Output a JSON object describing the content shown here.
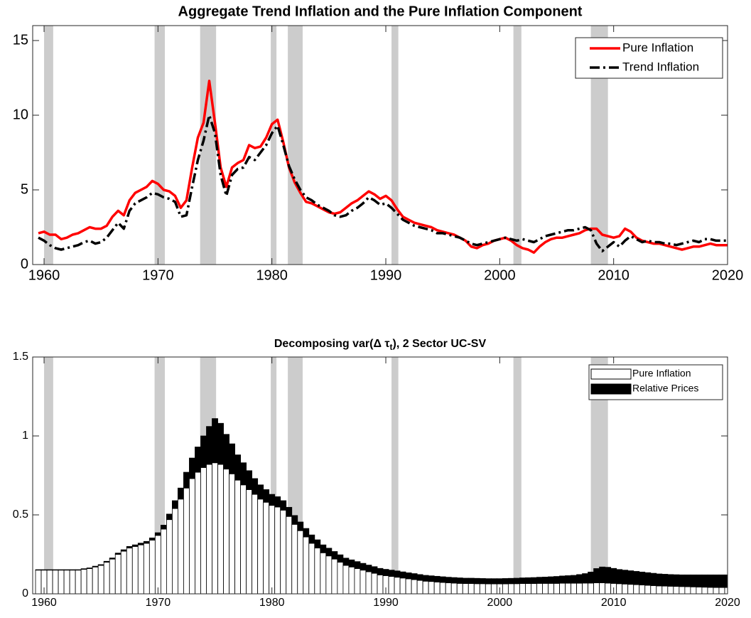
{
  "chart_data": [
    {
      "type": "line",
      "title": "Aggregate Trend Inflation and the Pure Inflation Component",
      "x": [
        1959.5,
        1960,
        1960.5,
        1961,
        1961.5,
        1962,
        1962.5,
        1963,
        1963.5,
        1964,
        1964.5,
        1965,
        1965.5,
        1966,
        1966.5,
        1967,
        1967.5,
        1968,
        1968.5,
        1969,
        1969.5,
        1970,
        1970.5,
        1971,
        1971.5,
        1972,
        1972.5,
        1973,
        1973.5,
        1974,
        1974.5,
        1975,
        1975.5,
        1976,
        1976.5,
        1977,
        1977.5,
        1978,
        1978.5,
        1979,
        1979.5,
        1980,
        1980.5,
        1981,
        1981.5,
        1982,
        1982.5,
        1983,
        1983.5,
        1984,
        1984.5,
        1985,
        1985.5,
        1986,
        1986.5,
        1987,
        1987.5,
        1988,
        1988.5,
        1989,
        1989.5,
        1990,
        1990.5,
        1991,
        1991.5,
        1992,
        1992.5,
        1993,
        1993.5,
        1994,
        1994.5,
        1995,
        1995.5,
        1996,
        1996.5,
        1997,
        1997.5,
        1998,
        1998.5,
        1999,
        1999.5,
        2000,
        2000.5,
        2001,
        2001.5,
        2002,
        2002.5,
        2003,
        2003.5,
        2004,
        2004.5,
        2005,
        2005.5,
        2006,
        2006.5,
        2007,
        2007.5,
        2008,
        2008.5,
        2009,
        2009.5,
        2010,
        2010.5,
        2011,
        2011.5,
        2012,
        2012.5,
        2013,
        2013.5,
        2014,
        2014.5,
        2015,
        2015.5,
        2016,
        2016.5,
        2017,
        2017.5,
        2018,
        2018.5,
        2019,
        2019.5,
        2020
      ],
      "series": [
        {
          "name": "Pure Inflation",
          "color": "#ff0000",
          "line_style": "solid",
          "values": [
            2.1,
            2.2,
            2.0,
            2.0,
            1.7,
            1.8,
            2.0,
            2.1,
            2.3,
            2.5,
            2.4,
            2.4,
            2.6,
            3.2,
            3.6,
            3.3,
            4.3,
            4.8,
            5.0,
            5.2,
            5.6,
            5.4,
            5.0,
            4.9,
            4.6,
            3.8,
            4.3,
            6.5,
            8.5,
            9.5,
            12.3,
            9.5,
            6.5,
            5.2,
            6.5,
            6.8,
            7.0,
            8.0,
            7.8,
            7.9,
            8.5,
            9.4,
            9.7,
            8.2,
            6.5,
            5.5,
            4.8,
            4.2,
            4.1,
            3.9,
            3.7,
            3.5,
            3.4,
            3.5,
            3.8,
            4.1,
            4.3,
            4.6,
            4.9,
            4.7,
            4.4,
            4.6,
            4.3,
            3.7,
            3.2,
            3.0,
            2.8,
            2.7,
            2.6,
            2.5,
            2.3,
            2.2,
            2.1,
            2.0,
            1.8,
            1.6,
            1.2,
            1.1,
            1.3,
            1.4,
            1.6,
            1.7,
            1.8,
            1.6,
            1.3,
            1.1,
            1.0,
            0.8,
            1.2,
            1.5,
            1.7,
            1.8,
            1.8,
            1.9,
            2.0,
            2.1,
            2.3,
            2.4,
            2.4,
            2.0,
            1.9,
            1.8,
            1.9,
            2.4,
            2.2,
            1.8,
            1.6,
            1.5,
            1.4,
            1.4,
            1.3,
            1.2,
            1.1,
            1.0,
            1.1,
            1.2,
            1.2,
            1.3,
            1.4,
            1.3,
            1.3,
            1.3
          ]
        },
        {
          "name": "Trend Inflation",
          "color": "#000000",
          "line_style": "dashdot",
          "values": [
            1.8,
            1.6,
            1.3,
            1.1,
            1.0,
            1.1,
            1.2,
            1.3,
            1.5,
            1.6,
            1.4,
            1.5,
            1.8,
            2.3,
            2.8,
            2.4,
            3.6,
            4.1,
            4.3,
            4.5,
            4.8,
            4.7,
            4.5,
            4.4,
            4.2,
            3.2,
            3.3,
            5.2,
            7.0,
            8.3,
            10.0,
            8.8,
            6.0,
            4.6,
            6.0,
            6.4,
            6.5,
            7.2,
            7.0,
            7.5,
            8.0,
            8.8,
            9.3,
            8.0,
            6.6,
            5.7,
            5.0,
            4.5,
            4.3,
            4.0,
            3.8,
            3.6,
            3.3,
            3.2,
            3.3,
            3.6,
            3.8,
            4.1,
            4.5,
            4.3,
            4.0,
            4.1,
            3.8,
            3.4,
            3.0,
            2.8,
            2.6,
            2.5,
            2.4,
            2.3,
            2.1,
            2.1,
            2.0,
            1.9,
            1.8,
            1.6,
            1.4,
            1.3,
            1.4,
            1.5,
            1.6,
            1.7,
            1.8,
            1.7,
            1.6,
            1.7,
            1.6,
            1.5,
            1.7,
            1.9,
            2.0,
            2.1,
            2.2,
            2.3,
            2.3,
            2.4,
            2.5,
            2.3,
            1.4,
            0.9,
            1.2,
            1.5,
            1.2,
            1.6,
            1.9,
            1.7,
            1.5,
            1.6,
            1.5,
            1.5,
            1.4,
            1.4,
            1.3,
            1.4,
            1.5,
            1.6,
            1.5,
            1.7,
            1.7,
            1.6,
            1.6,
            1.6
          ]
        }
      ],
      "xlim": [
        1959,
        2020
      ],
      "xticks": [
        1960,
        1970,
        1980,
        1990,
        2000,
        2010,
        2020
      ],
      "ylim": [
        0,
        16
      ],
      "yticks": [
        0,
        5,
        10,
        15
      ],
      "legend": "upper right",
      "shade_color": "#cccccc",
      "shaded_periods": [
        [
          1960.0,
          1960.8
        ],
        [
          1969.7,
          1970.6
        ],
        [
          1973.7,
          1975.1
        ],
        [
          1979.9,
          1980.4
        ],
        [
          1981.4,
          1982.7
        ],
        [
          1990.5,
          1991.1
        ],
        [
          2001.2,
          2001.9
        ],
        [
          2008.0,
          2009.5
        ]
      ]
    },
    {
      "type": "stacked_bar",
      "title_prefix": "Decomposing var(Δ τ",
      "title_sub": "t",
      "title_suffix": "), 2 Sector UC-SV",
      "x": [
        1959.5,
        1960,
        1960.5,
        1961,
        1961.5,
        1962,
        1962.5,
        1963,
        1963.5,
        1964,
        1964.5,
        1965,
        1965.5,
        1966,
        1966.5,
        1967,
        1967.5,
        1968,
        1968.5,
        1969,
        1969.5,
        1970,
        1970.5,
        1971,
        1971.5,
        1972,
        1972.5,
        1973,
        1973.5,
        1974,
        1974.5,
        1975,
        1975.5,
        1976,
        1976.5,
        1977,
        1977.5,
        1978,
        1978.5,
        1979,
        1979.5,
        1980,
        1980.5,
        1981,
        1981.5,
        1982,
        1982.5,
        1983,
        1983.5,
        1984,
        1984.5,
        1985,
        1985.5,
        1986,
        1986.5,
        1987,
        1987.5,
        1988,
        1988.5,
        1989,
        1989.5,
        1990,
        1990.5,
        1991,
        1991.5,
        1992,
        1992.5,
        1993,
        1993.5,
        1994,
        1994.5,
        1995,
        1995.5,
        1996,
        1996.5,
        1997,
        1997.5,
        1998,
        1998.5,
        1999,
        1999.5,
        2000,
        2000.5,
        2001,
        2001.5,
        2002,
        2002.5,
        2003,
        2003.5,
        2004,
        2004.5,
        2005,
        2005.5,
        2006,
        2006.5,
        2007,
        2007.5,
        2008,
        2008.5,
        2009,
        2009.5,
        2010,
        2010.5,
        2011,
        2011.5,
        2012,
        2012.5,
        2013,
        2013.5,
        2014,
        2014.5,
        2015,
        2015.5,
        2016,
        2016.5,
        2017,
        2017.5,
        2018,
        2018.5,
        2019,
        2019.5,
        2020
      ],
      "series": [
        {
          "name": "Pure Inflation",
          "color": "#ffffff",
          "values": [
            0.15,
            0.15,
            0.15,
            0.15,
            0.15,
            0.15,
            0.15,
            0.15,
            0.155,
            0.16,
            0.17,
            0.18,
            0.2,
            0.22,
            0.25,
            0.27,
            0.29,
            0.3,
            0.31,
            0.32,
            0.34,
            0.37,
            0.41,
            0.47,
            0.54,
            0.6,
            0.67,
            0.73,
            0.77,
            0.8,
            0.82,
            0.83,
            0.82,
            0.79,
            0.76,
            0.72,
            0.69,
            0.66,
            0.63,
            0.6,
            0.58,
            0.56,
            0.55,
            0.53,
            0.49,
            0.44,
            0.4,
            0.36,
            0.32,
            0.29,
            0.26,
            0.24,
            0.22,
            0.2,
            0.18,
            0.17,
            0.16,
            0.15,
            0.14,
            0.13,
            0.12,
            0.115,
            0.11,
            0.105,
            0.1,
            0.095,
            0.09,
            0.085,
            0.08,
            0.078,
            0.075,
            0.072,
            0.07,
            0.068,
            0.066,
            0.065,
            0.065,
            0.064,
            0.064,
            0.063,
            0.063,
            0.063,
            0.063,
            0.064,
            0.064,
            0.065,
            0.065,
            0.065,
            0.066,
            0.066,
            0.066,
            0.066,
            0.067,
            0.067,
            0.067,
            0.067,
            0.068,
            0.068,
            0.07,
            0.07,
            0.068,
            0.066,
            0.064,
            0.062,
            0.06,
            0.058,
            0.056,
            0.054,
            0.052,
            0.05,
            0.049,
            0.048,
            0.047,
            0.046,
            0.045,
            0.044,
            0.043,
            0.042,
            0.041,
            0.04,
            0.04,
            0.04
          ]
        },
        {
          "name": "Relative Prices",
          "color": "#000000",
          "values": [
            0.003,
            0.003,
            0.003,
            0.003,
            0.003,
            0.003,
            0.003,
            0.003,
            0.004,
            0.004,
            0.005,
            0.005,
            0.006,
            0.007,
            0.008,
            0.009,
            0.01,
            0.01,
            0.011,
            0.012,
            0.014,
            0.017,
            0.025,
            0.035,
            0.05,
            0.07,
            0.1,
            0.13,
            0.16,
            0.2,
            0.24,
            0.28,
            0.26,
            0.22,
            0.19,
            0.16,
            0.14,
            0.12,
            0.1,
            0.09,
            0.08,
            0.07,
            0.065,
            0.06,
            0.058,
            0.056,
            0.055,
            0.054,
            0.053,
            0.052,
            0.05,
            0.049,
            0.048,
            0.047,
            0.046,
            0.045,
            0.044,
            0.043,
            0.042,
            0.042,
            0.041,
            0.04,
            0.04,
            0.04,
            0.039,
            0.038,
            0.038,
            0.037,
            0.037,
            0.036,
            0.036,
            0.036,
            0.035,
            0.035,
            0.035,
            0.034,
            0.034,
            0.034,
            0.033,
            0.033,
            0.033,
            0.033,
            0.034,
            0.034,
            0.035,
            0.036,
            0.037,
            0.038,
            0.039,
            0.04,
            0.042,
            0.044,
            0.046,
            0.048,
            0.05,
            0.055,
            0.06,
            0.07,
            0.09,
            0.1,
            0.1,
            0.095,
            0.09,
            0.088,
            0.086,
            0.084,
            0.082,
            0.08,
            0.078,
            0.076,
            0.075,
            0.074,
            0.074,
            0.074,
            0.075,
            0.076,
            0.077,
            0.078,
            0.079,
            0.08,
            0.08,
            0.08
          ]
        }
      ],
      "xlim": [
        1959,
        2020
      ],
      "xticks": [
        1960,
        1970,
        1980,
        1990,
        2000,
        2010,
        2020
      ],
      "ylim": [
        0,
        1.5
      ],
      "yticks": [
        0,
        0.5,
        1,
        1.5
      ],
      "legend": "upper right",
      "shade_color": "#cccccc",
      "shaded_periods": [
        [
          1960.0,
          1960.8
        ],
        [
          1969.7,
          1970.6
        ],
        [
          1973.7,
          1975.1
        ],
        [
          1979.9,
          1980.4
        ],
        [
          1981.4,
          1982.7
        ],
        [
          1990.5,
          1991.1
        ],
        [
          2001.2,
          2001.9
        ],
        [
          2008.0,
          2009.5
        ]
      ]
    }
  ]
}
